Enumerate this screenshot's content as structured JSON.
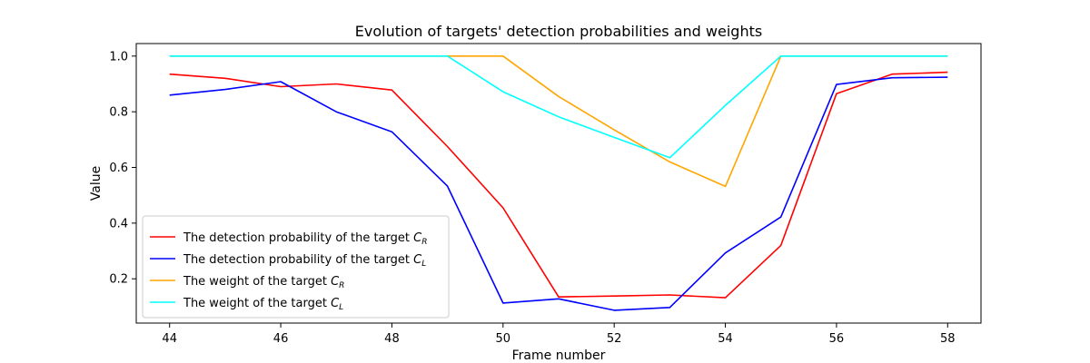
{
  "chart_data": {
    "type": "line",
    "title": "Evolution of targets' detection probabilities and weights",
    "xlabel": "Frame number",
    "ylabel": "Value",
    "xlim": [
      43.4,
      58.6
    ],
    "ylim": [
      0.041,
      1.045
    ],
    "x": [
      44,
      45,
      46,
      47,
      48,
      49,
      50,
      51,
      52,
      53,
      54,
      55,
      56,
      57,
      58
    ],
    "x_ticks": [
      "44",
      "46",
      "48",
      "50",
      "52",
      "54",
      "56",
      "58"
    ],
    "y_ticks": [
      "0.2",
      "0.4",
      "0.6",
      "0.8",
      "1.0"
    ],
    "grid": false,
    "legend_position": "lower-left",
    "series": [
      {
        "name_prefix": "The detection probability of the target ",
        "name_symbol": "C",
        "name_sub": "R",
        "color": "#ff0000",
        "values": [
          0.935,
          0.92,
          0.89,
          0.9,
          0.878,
          0.675,
          0.455,
          0.135,
          0.138,
          0.142,
          0.132,
          0.32,
          0.865,
          0.935,
          0.942
        ]
      },
      {
        "name_prefix": "The detection probability of the target ",
        "name_symbol": "C",
        "name_sub": "L",
        "color": "#0000ff",
        "values": [
          0.86,
          0.88,
          0.908,
          0.8,
          0.728,
          0.533,
          0.113,
          0.128,
          0.087,
          0.097,
          0.293,
          0.422,
          0.898,
          0.922,
          0.924
        ]
      },
      {
        "name_prefix": "The weight of the target ",
        "name_symbol": "C",
        "name_sub": "R",
        "color": "#ffa500",
        "values": [
          1.0,
          1.0,
          1.0,
          1.0,
          1.0,
          1.0,
          1.0,
          0.855,
          0.735,
          0.62,
          0.532,
          1.0,
          1.0,
          1.0,
          1.0
        ]
      },
      {
        "name_prefix": "The weight of the target ",
        "name_symbol": "C",
        "name_sub": "L",
        "color": "#00ffff",
        "values": [
          1.0,
          1.0,
          1.0,
          1.0,
          1.0,
          1.0,
          0.872,
          0.782,
          0.708,
          0.635,
          0.823,
          1.0,
          1.0,
          1.0,
          1.0
        ]
      }
    ]
  }
}
